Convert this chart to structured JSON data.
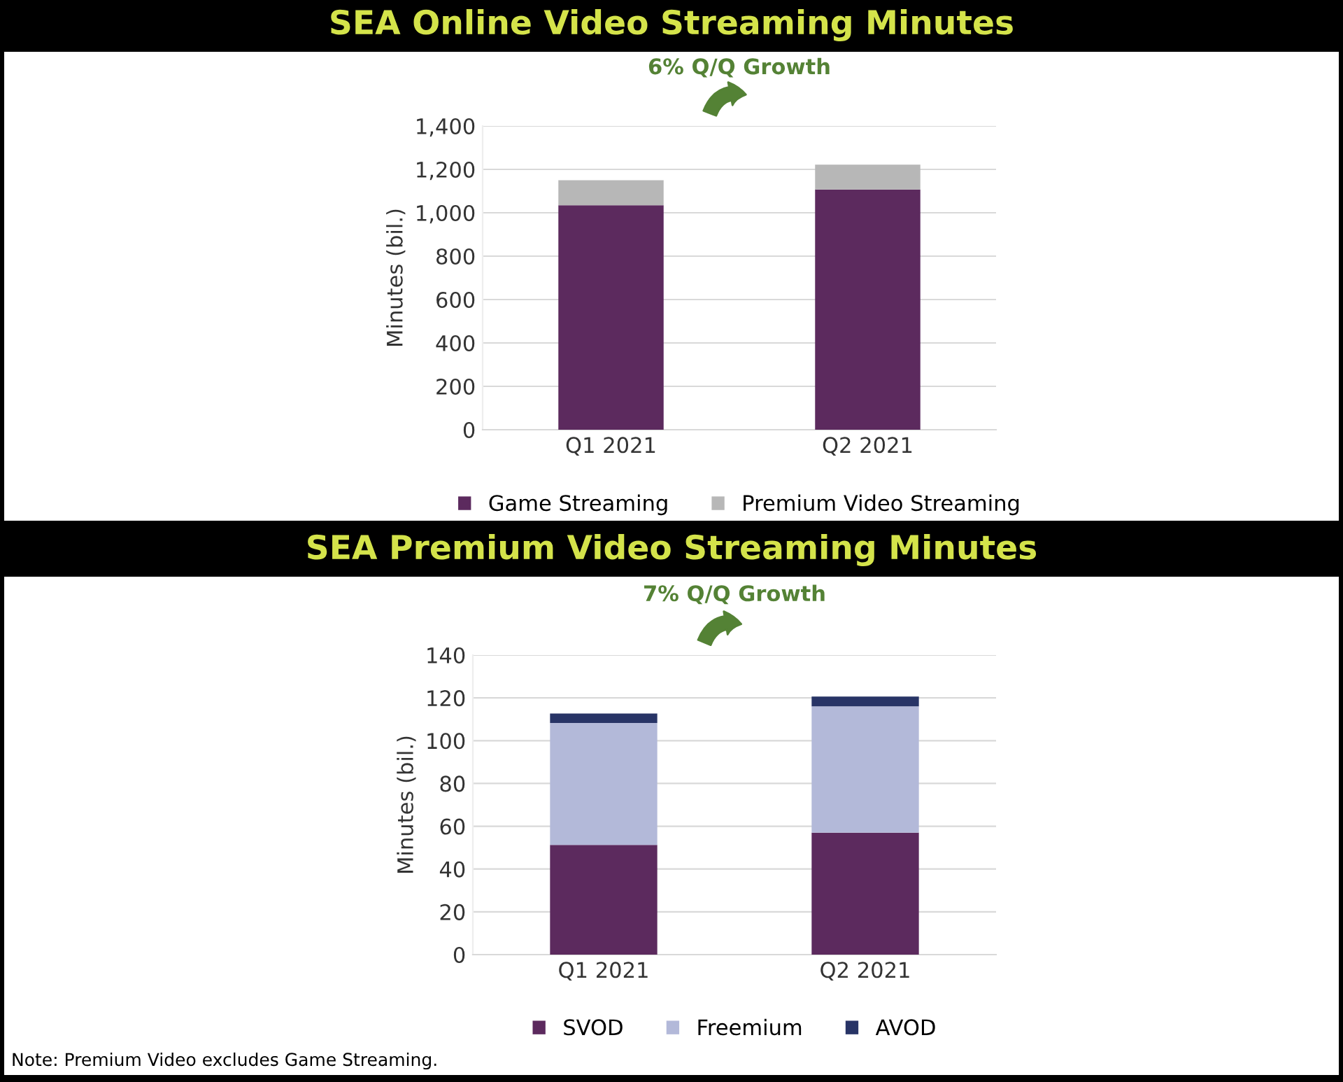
{
  "chart_data": [
    {
      "type": "bar",
      "title": "SEA Online Video Streaming Minutes",
      "ylabel": "Minutes (bil.)",
      "categories": [
        "Q1 2021",
        "Q2 2021"
      ],
      "stacked": true,
      "series": [
        {
          "name": "Game Streaming",
          "color": "#5c2a5e",
          "values": [
            1035,
            1107
          ]
        },
        {
          "name": "Premium Video Streaming",
          "color": "#b7b7b7",
          "values": [
            115,
            115
          ]
        }
      ],
      "ylim": [
        0,
        1400
      ],
      "yticks": [
        0,
        200,
        400,
        600,
        800,
        {
          "value": 1000,
          "label": "1,000"
        },
        {
          "value": 1200,
          "label": "1,200"
        },
        {
          "value": 1400,
          "label": "1,400"
        }
      ],
      "grid": "y",
      "legend": "bottom",
      "annotations": [
        "6% Q/Q Growth"
      ]
    },
    {
      "type": "bar",
      "title": "SEA Premium Video Streaming Minutes",
      "ylabel": "Minutes (bil.)",
      "categories": [
        "Q1 2021",
        "Q2 2021"
      ],
      "stacked": true,
      "series": [
        {
          "name": "SVOD",
          "color": "#5c2a5e",
          "values": [
            51.3,
            57
          ]
        },
        {
          "name": "Freemium",
          "color": "#b3b9d9",
          "values": [
            57,
            59
          ]
        },
        {
          "name": "AVOD",
          "color": "#283466",
          "values": [
            4.4,
            4.6
          ]
        }
      ],
      "ylim": [
        0,
        140
      ],
      "yticks": [
        0,
        20,
        40,
        60,
        80,
        100,
        120,
        140
      ],
      "grid": "y",
      "legend": "bottom",
      "annotations": [
        "7% Q/Q Growth",
        "Note: Premium Video excludes Game Streaming."
      ]
    }
  ]
}
